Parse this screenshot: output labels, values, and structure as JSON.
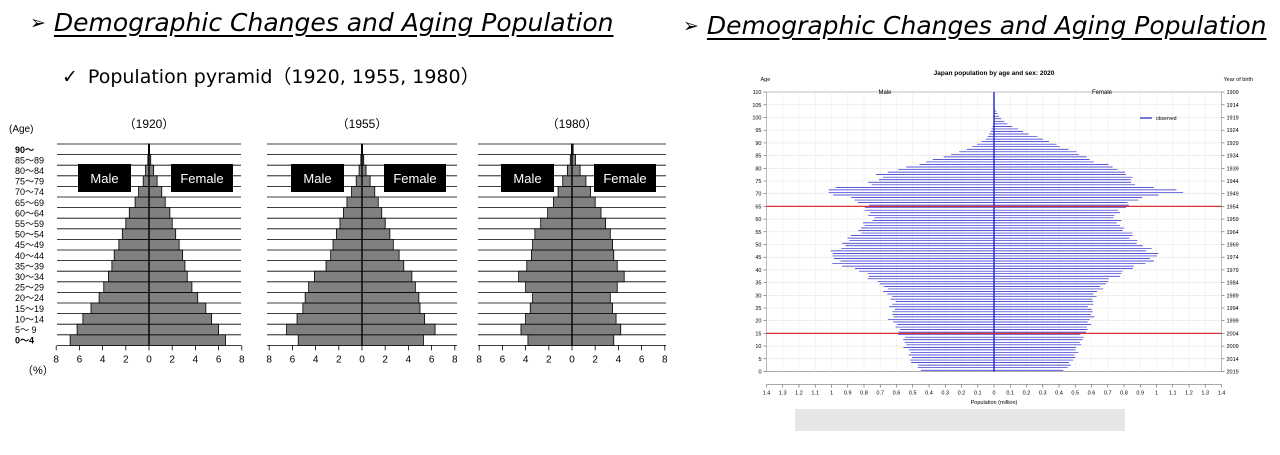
{
  "left_panel": {
    "heading": "Demographic Changes and Aging Population",
    "arrow": "➢",
    "subtitle": "Population pyramid（1920, 1955, 1980）",
    "check": "✓"
  },
  "right_panel": {
    "heading": "Demographic Changes and Aging Population",
    "arrow": "➢"
  },
  "colors": {
    "pyramid_fill": "#808080",
    "pyramid_stroke": "#000000",
    "chart_line": "#2222cc",
    "reference_line": "#e03030"
  },
  "chart_data": [
    {
      "type": "bar",
      "orientation": "horizontal-pyramid",
      "title": "（1920）",
      "ylabel": "(Age)",
      "xlabel": "（%）",
      "categories": [
        "0～4",
        "5～ 9",
        "10～14",
        "15～19",
        "20～24",
        "25～29",
        "30～34",
        "35～39",
        "40～44",
        "45～49",
        "50～54",
        "55～59",
        "60～64",
        "65～69",
        "70～74",
        "75～79",
        "80～84",
        "85～89",
        "90～"
      ],
      "xticks": [
        "8",
        "6",
        "4",
        "2",
        "0",
        "2",
        "4",
        "6",
        "8"
      ],
      "xlim": [
        -8,
        8
      ],
      "legend_male": "Male",
      "legend_female": "Female",
      "series": [
        {
          "name": "Male",
          "values": [
            6.8,
            6.2,
            5.7,
            5.0,
            4.3,
            3.9,
            3.5,
            3.2,
            3.0,
            2.6,
            2.3,
            2.0,
            1.7,
            1.2,
            0.9,
            0.5,
            0.3,
            0.1,
            0.05
          ]
        },
        {
          "name": "Female",
          "values": [
            6.6,
            6.0,
            5.4,
            4.9,
            4.2,
            3.7,
            3.3,
            3.1,
            2.9,
            2.6,
            2.3,
            2.0,
            1.8,
            1.4,
            1.1,
            0.7,
            0.4,
            0.15,
            0.05
          ]
        }
      ]
    },
    {
      "type": "bar",
      "orientation": "horizontal-pyramid",
      "title": "（1955）",
      "xticks": [
        "8",
        "6",
        "4",
        "2",
        "0",
        "2",
        "4",
        "6",
        "8"
      ],
      "xlim": [
        -8,
        8
      ],
      "legend_male": "Male",
      "legend_female": "Female",
      "series": [
        {
          "name": "Male",
          "values": [
            5.5,
            6.5,
            5.6,
            5.1,
            4.9,
            4.6,
            4.1,
            3.1,
            2.7,
            2.5,
            2.2,
            1.9,
            1.6,
            1.3,
            0.9,
            0.5,
            0.25,
            0.1,
            0.05
          ]
        },
        {
          "name": "Female",
          "values": [
            5.3,
            6.3,
            5.4,
            5.0,
            4.9,
            4.6,
            4.3,
            3.6,
            3.2,
            2.7,
            2.4,
            2.0,
            1.7,
            1.4,
            1.1,
            0.7,
            0.35,
            0.15,
            0.05
          ]
        }
      ]
    },
    {
      "type": "bar",
      "orientation": "horizontal-pyramid",
      "title": "（1980）",
      "xticks": [
        "8",
        "6",
        "4",
        "2",
        "0",
        "2",
        "4",
        "6",
        "8"
      ],
      "xlim": [
        -8,
        8
      ],
      "legend_male": "Male",
      "legend_female": "Female",
      "series": [
        {
          "name": "Male",
          "values": [
            3.8,
            4.4,
            4.0,
            3.6,
            3.4,
            4.0,
            4.6,
            3.9,
            3.5,
            3.4,
            3.2,
            2.7,
            2.1,
            1.6,
            1.2,
            0.8,
            0.4,
            0.15,
            0.05
          ]
        },
        {
          "name": "Female",
          "values": [
            3.6,
            4.2,
            3.8,
            3.5,
            3.3,
            3.9,
            4.5,
            3.9,
            3.6,
            3.5,
            3.3,
            2.9,
            2.5,
            2.0,
            1.6,
            1.2,
            0.7,
            0.3,
            0.1
          ]
        }
      ]
    },
    {
      "type": "bar",
      "orientation": "horizontal-pyramid",
      "title": "Japan population by age and sex: 2020",
      "ylabel": "Age",
      "y2label": "Year of birth",
      "xlabel": "Population (million)",
      "male_label": "Male",
      "female_label": "Female",
      "legend": "observed",
      "xlim": [
        -1.4,
        1.4
      ],
      "xticks": [
        "1.4",
        "1.3",
        "1.2",
        "1.1",
        "1",
        "0.9",
        "0.8",
        "0.7",
        "0.6",
        "0.5",
        "0.4",
        "0.3",
        "0.2",
        "0.1",
        "0",
        "0.1",
        "0.2",
        "0.3",
        "0.4",
        "0.5",
        "0.6",
        "0.7",
        "0.8",
        "0.9",
        "1",
        "1.1",
        "1.2",
        "1.3",
        "1.4"
      ],
      "yticks": [
        "0",
        "5",
        "10",
        "15",
        "20",
        "25",
        "30",
        "35",
        "40",
        "45",
        "50",
        "55",
        "60",
        "65",
        "70",
        "75",
        "80",
        "85",
        "90",
        "95",
        "100",
        "105",
        "110"
      ],
      "y2ticks": [
        "2019",
        "2014",
        "2009",
        "2004",
        "1999",
        "1994",
        "1989",
        "1984",
        "1979",
        "1974",
        "1969",
        "1964",
        "1959",
        "1954",
        "1949",
        "1944",
        "1939",
        "1934",
        "1929",
        "1924",
        "1919",
        "1914",
        "1909"
      ],
      "ylim": [
        0,
        110
      ],
      "reference_lines_age": [
        15,
        65
      ],
      "age_anchors": [
        0,
        3,
        8,
        15,
        20,
        27,
        33,
        39,
        42,
        46,
        47,
        50,
        55,
        60,
        65,
        68,
        70,
        71,
        72,
        73,
        74,
        75,
        76,
        77,
        78,
        80,
        82,
        85,
        88,
        91,
        94,
        97,
        100,
        103,
        105,
        110
      ],
      "male_anchors": [
        0.45,
        0.5,
        0.53,
        0.58,
        0.63,
        0.62,
        0.68,
        0.82,
        0.97,
        1.0,
        0.97,
        0.92,
        0.83,
        0.75,
        0.8,
        0.88,
        1.05,
        1.03,
        0.95,
        0.76,
        0.76,
        0.71,
        0.71,
        0.71,
        0.65,
        0.53,
        0.42,
        0.26,
        0.13,
        0.05,
        0.02,
        0.005,
        0.002,
        0.001,
        0,
        0
      ],
      "female_anchors": [
        0.43,
        0.48,
        0.51,
        0.56,
        0.6,
        0.6,
        0.66,
        0.8,
        0.93,
        1.02,
        0.96,
        0.89,
        0.81,
        0.74,
        0.81,
        0.92,
        1.12,
        1.14,
        1.0,
        0.86,
        0.86,
        0.82,
        0.84,
        0.84,
        0.8,
        0.73,
        0.63,
        0.53,
        0.42,
        0.3,
        0.18,
        0.08,
        0.03,
        0.005,
        0,
        0
      ]
    }
  ]
}
